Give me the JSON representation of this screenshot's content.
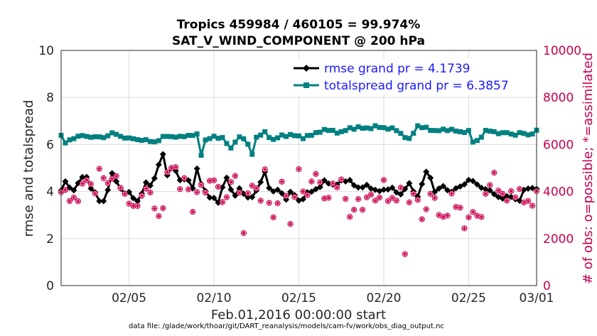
{
  "chart_data": {
    "type": "line",
    "title": "Tropics 459984 / 460105 = 99.974%",
    "subtitle": "SAT_V_WIND_COMPONENT @ 200 hPa",
    "xlabel": "Feb.01,2016 00:00:00 start",
    "ylabel": "rmse and totalspread",
    "y2label": "# of obs: o=possible; *=assimilated",
    "footer": "data file: /glade/work/thoar/git/DART_reanalysis/models/cam-fv/work/obs_diag_output.nc",
    "xlim": [
      1,
      29
    ],
    "ylim": [
      0,
      10
    ],
    "y2lim": [
      0,
      10000
    ],
    "xticks": [
      5,
      10,
      15,
      20,
      25,
      29
    ],
    "xticklabels": [
      "02/05",
      "02/10",
      "02/15",
      "02/20",
      "02/25",
      "03/01"
    ],
    "yticks": [
      0,
      2,
      4,
      6,
      8,
      10
    ],
    "y2ticks": [
      0,
      2000,
      4000,
      6000,
      8000,
      10000
    ],
    "colors": {
      "rmse": "#000000",
      "totalspread": "#008080",
      "obs": "#c8004f"
    },
    "grid": true,
    "legend_placement": "top-right",
    "series": [
      {
        "name": "rmse grand pr = 4.1739",
        "key": "rmse",
        "axis": "left",
        "anchors_x": [
          1.0,
          1.3,
          1.6,
          2.0,
          2.4,
          2.8,
          3.1,
          3.4,
          3.7,
          4.0,
          4.3,
          4.6,
          5.0,
          5.5,
          6.0,
          6.4,
          6.7,
          7.0,
          7.3,
          7.6,
          8.0,
          8.4,
          8.7,
          9.0,
          9.4,
          9.8,
          10.3,
          10.7,
          11.1,
          11.5,
          12.0,
          12.5,
          13.0,
          13.4,
          13.8,
          14.2,
          14.6,
          15.0,
          15.5,
          16.0,
          16.5,
          17.0,
          17.5,
          18.0,
          18.5,
          19.0,
          19.5,
          20.0,
          20.5,
          21.0,
          21.5,
          22.0,
          22.3,
          22.6,
          23.0,
          23.5,
          24.0,
          24.5,
          25.0,
          25.5,
          26.0,
          26.5,
          27.0,
          27.5,
          28.0,
          28.3,
          28.6,
          29.0
        ],
        "anchors_y": [
          4.0,
          4.5,
          4.0,
          4.3,
          4.8,
          4.1,
          3.8,
          3.4,
          4.0,
          4.7,
          4.4,
          4.0,
          3.9,
          3.6,
          4.3,
          4.3,
          5.1,
          5.5,
          4.6,
          5.2,
          4.4,
          4.7,
          4.0,
          4.9,
          4.1,
          3.7,
          3.6,
          4.7,
          3.8,
          4.1,
          3.7,
          4.0,
          4.8,
          3.9,
          4.1,
          3.7,
          4.0,
          3.6,
          3.9,
          4.1,
          4.4,
          4.3,
          4.4,
          4.5,
          4.1,
          4.3,
          4.0,
          4.1,
          4.1,
          3.9,
          4.3,
          3.8,
          4.4,
          5.0,
          4.0,
          4.2,
          4.0,
          4.2,
          4.5,
          4.3,
          4.1,
          3.9,
          3.7,
          3.8,
          3.6,
          4.1,
          4.2,
          4.1
        ],
        "jitter": 0.09
      },
      {
        "name": "totalspread grand pr = 6.3857",
        "key": "totalspread",
        "axis": "left",
        "anchors_x": [
          1.0,
          1.2,
          1.5,
          2.0,
          2.6,
          3.2,
          3.6,
          3.9,
          4.3,
          5.0,
          5.8,
          6.4,
          6.8,
          7.1,
          7.6,
          8.0,
          8.5,
          9.0,
          9.3,
          9.5,
          9.9,
          10.5,
          11.0,
          11.4,
          11.9,
          12.2,
          12.5,
          13.0,
          13.5,
          14.1,
          14.6,
          15.2,
          15.8,
          16.3,
          16.9,
          17.5,
          18.0,
          18.4,
          19.0,
          19.6,
          20.2,
          20.8,
          21.2,
          21.5,
          22.0,
          22.4,
          22.9,
          23.5,
          24.0,
          24.5,
          25.0,
          25.3,
          25.6,
          26.0,
          26.6,
          27.2,
          27.6,
          28.0,
          28.5,
          28.8,
          29.0
        ],
        "anchors_y": [
          6.4,
          6.0,
          6.2,
          6.35,
          6.35,
          6.3,
          6.3,
          6.5,
          6.4,
          6.25,
          6.2,
          6.1,
          6.2,
          6.35,
          6.35,
          6.3,
          6.4,
          6.4,
          5.4,
          6.2,
          6.3,
          6.3,
          5.8,
          6.35,
          6.2,
          5.5,
          6.3,
          6.5,
          6.2,
          6.4,
          6.4,
          6.3,
          6.4,
          6.6,
          6.6,
          6.5,
          6.7,
          6.7,
          6.7,
          6.75,
          6.7,
          6.6,
          6.35,
          6.2,
          6.8,
          6.7,
          6.6,
          6.6,
          6.65,
          6.5,
          6.6,
          6.0,
          6.2,
          6.6,
          6.5,
          6.5,
          6.4,
          6.5,
          6.4,
          6.5,
          6.6
        ],
        "jitter": 0.06
      },
      {
        "name": "obs assimilated",
        "key": "obs",
        "axis": "right",
        "anchors_x": [
          1.0,
          1.5,
          2.0,
          2.5,
          3.0,
          3.3,
          3.7,
          4.0,
          4.3,
          4.7,
          5.0,
          5.3,
          5.7,
          6.0,
          6.4,
          6.9,
          7.3,
          7.7,
          8.0,
          8.4,
          8.8,
          9.1,
          9.4,
          9.8,
          10.2,
          10.6,
          11.0,
          11.4,
          11.8,
          12.0,
          12.4,
          12.8,
          13.0,
          13.4,
          13.8,
          14.1,
          14.5,
          15.0,
          15.4,
          15.8,
          16.2,
          16.6,
          17.0,
          17.5,
          18.0,
          18.4,
          18.8,
          19.2,
          19.6,
          20.0,
          20.3,
          20.7,
          21.0,
          21.2,
          21.6,
          22.0,
          22.4,
          22.8,
          23.2,
          23.6,
          24.0,
          24.4,
          24.8,
          25.2,
          25.6,
          26.0,
          26.4,
          26.8,
          27.2,
          27.6,
          28.0,
          28.4,
          28.7,
          29.0
        ],
        "anchors_y": [
          4200,
          3600,
          3800,
          4500,
          4100,
          4900,
          4300,
          4700,
          4400,
          4000,
          3600,
          3100,
          3800,
          4200,
          3500,
          2800,
          4900,
          5300,
          4100,
          4600,
          3000,
          4400,
          3900,
          4600,
          4200,
          3500,
          4300,
          4800,
          1900,
          3800,
          4500,
          3500,
          4800,
          2800,
          3600,
          4600,
          2700,
          4800,
          3700,
          4500,
          4700,
          3400,
          4200,
          4500,
          2800,
          3800,
          3100,
          4200,
          3300,
          4400,
          3700,
          3500,
          4100,
          1200,
          4100,
          3600,
          2700,
          4100,
          3300,
          2500,
          3900,
          3300,
          2400,
          3400,
          2500,
          3900,
          4700,
          4100,
          3700,
          3800,
          4100,
          3300,
          3500,
          4000
        ],
        "jitter": 250
      }
    ]
  }
}
